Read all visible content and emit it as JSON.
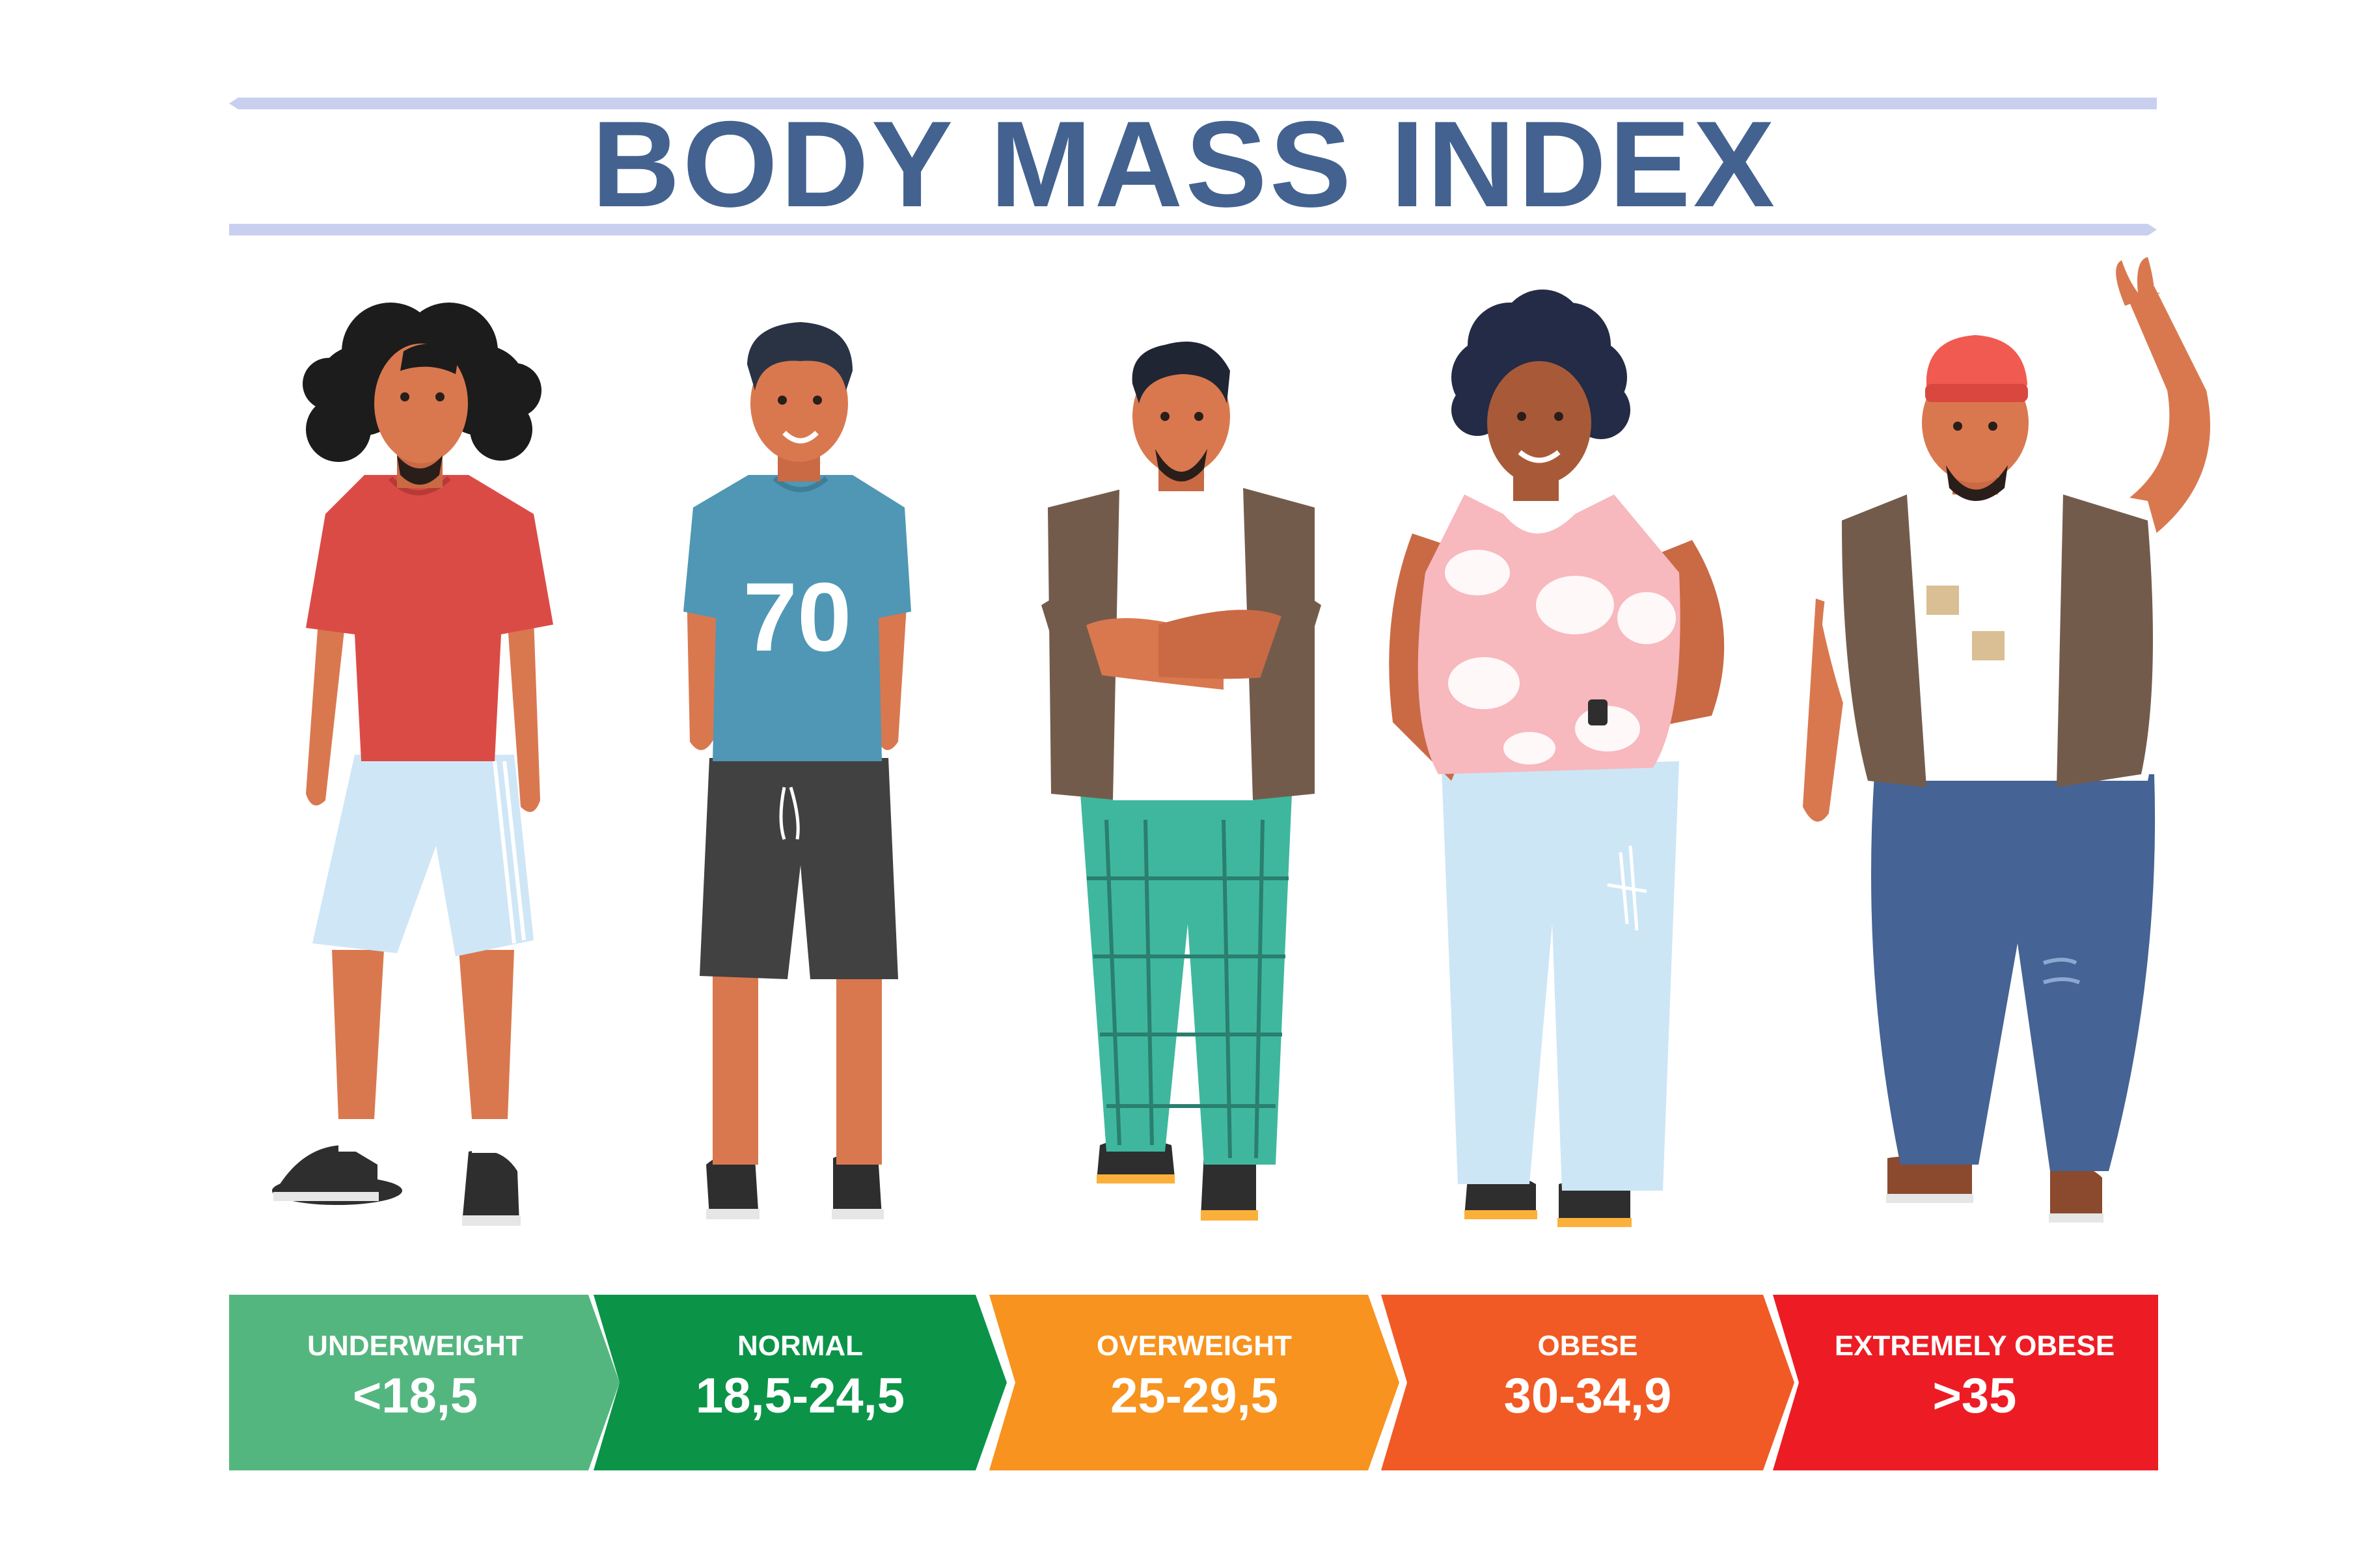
{
  "title": "BODY MASS INDEX",
  "colors": {
    "title": "#43628f",
    "rule": "#c9cfef",
    "underweight": "#54b67f",
    "normal": "#0b9448",
    "overweight": "#f7931e",
    "obese": "#f15a24",
    "extremely_obese": "#ed1c24"
  },
  "figures": [
    {
      "name": "underweight-man",
      "shirt_number": ""
    },
    {
      "name": "normal-man",
      "shirt_number": "70"
    },
    {
      "name": "overweight-man",
      "shirt_number": ""
    },
    {
      "name": "obese-man",
      "shirt_number": ""
    },
    {
      "name": "extremely-obese-man",
      "shirt_number": ""
    }
  ],
  "categories": [
    {
      "label": "UNDERWEIGHT",
      "range": "<18,5",
      "color": "#54b67f"
    },
    {
      "label": "NORMAL",
      "range": "18,5-24,5",
      "color": "#0b9448"
    },
    {
      "label": "OVERWEIGHT",
      "range": "25-29,5",
      "color": "#f7931e"
    },
    {
      "label": "OBESE",
      "range": "30-34,9",
      "color": "#f15a24"
    },
    {
      "label": "EXTREMELY OBESE",
      "range": ">35",
      "color": "#ed1c24"
    }
  ]
}
